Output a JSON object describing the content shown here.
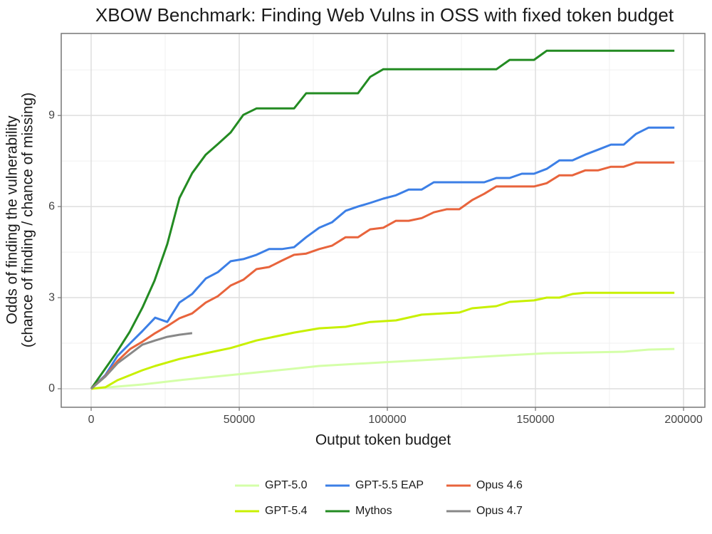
{
  "chart_data": {
    "type": "line",
    "title": "XBOW Benchmark: Finding Web Vulns in OSS with fixed token budget",
    "xlabel": "Output token budget",
    "ylabel": [
      "Odds of finding the vulnerability",
      "(chance of finding / chance of missing)"
    ],
    "xlim": [
      -10100,
      207200
    ],
    "ylim": [
      -0.61,
      11.7
    ],
    "xticks": [
      0,
      50000,
      100000,
      150000,
      200000
    ],
    "yticks": [
      0,
      3,
      6,
      9
    ],
    "grid": true,
    "minor_grid": true,
    "legend": "bottom",
    "series": [
      {
        "name": "GPT-5.0",
        "color": "#d4ffa8",
        "x": [
          0,
          17300,
          29800,
          47100,
          68500,
          77000,
          98600,
          115700,
          136800,
          153800,
          179800,
          188200,
          196900
        ],
        "values": [
          0,
          0.14,
          0.28,
          0.45,
          0.66,
          0.75,
          0.87,
          0.96,
          1.08,
          1.17,
          1.22,
          1.29,
          1.31
        ]
      },
      {
        "name": "GPT-5.4",
        "color": "#c8f000",
        "x": [
          0,
          4800,
          8900,
          17300,
          21600,
          29800,
          38700,
          47100,
          55800,
          68500,
          77000,
          85900,
          94200,
          102900,
          111600,
          124300,
          128600,
          136800,
          141300,
          149500,
          153800,
          158100,
          162500,
          166800,
          196900
        ],
        "values": [
          0,
          0.05,
          0.28,
          0.61,
          0.75,
          0.98,
          1.17,
          1.34,
          1.59,
          1.85,
          1.99,
          2.04,
          2.2,
          2.25,
          2.44,
          2.51,
          2.65,
          2.72,
          2.86,
          2.91,
          3.0,
          3.0,
          3.12,
          3.16,
          3.16
        ]
      },
      {
        "name": "GPT-5.5 EAP",
        "color": "#3c7fe6",
        "x": [
          0,
          4800,
          8900,
          13200,
          17300,
          21600,
          25700,
          29800,
          34100,
          38700,
          42800,
          47100,
          51400,
          55800,
          60100,
          64400,
          68500,
          72600,
          77000,
          81300,
          85900,
          90100,
          94200,
          98600,
          102900,
          107200,
          111600,
          115700,
          132700,
          136800,
          141300,
          145400,
          149500,
          153800,
          158100,
          162500,
          166800,
          171100,
          175500,
          179800,
          183900,
          188200,
          196900
        ],
        "values": [
          0,
          0.45,
          1.08,
          1.5,
          1.9,
          2.34,
          2.2,
          2.84,
          3.12,
          3.63,
          3.84,
          4.2,
          4.27,
          4.41,
          4.6,
          4.6,
          4.66,
          4.99,
          5.3,
          5.48,
          5.86,
          6.0,
          6.12,
          6.26,
          6.37,
          6.56,
          6.56,
          6.8,
          6.8,
          6.94,
          6.94,
          7.08,
          7.08,
          7.24,
          7.52,
          7.52,
          7.71,
          7.87,
          8.04,
          8.04,
          8.39,
          8.6,
          8.6
        ]
      },
      {
        "name": "Mythos",
        "color": "#238b22",
        "x": [
          0,
          8400,
          13000,
          17300,
          21400,
          25700,
          29800,
          34100,
          38700,
          42800,
          47100,
          51400,
          55800,
          68500,
          72600,
          90100,
          94200,
          98600,
          136800,
          141300,
          149500,
          153800,
          196900
        ],
        "values": [
          0,
          1.17,
          1.87,
          2.67,
          3.56,
          4.76,
          6.28,
          7.1,
          7.71,
          8.06,
          8.44,
          9.02,
          9.23,
          9.23,
          9.73,
          9.73,
          10.27,
          10.52,
          10.52,
          10.83,
          10.83,
          11.13,
          11.13
        ]
      },
      {
        "name": "Opus 4.6",
        "color": "#e8643c",
        "x": [
          0,
          4800,
          8900,
          13200,
          17300,
          21600,
          25700,
          29800,
          34100,
          38700,
          42800,
          47100,
          51400,
          55800,
          60100,
          64400,
          68500,
          72600,
          77000,
          81300,
          85900,
          90100,
          94200,
          98600,
          102900,
          107200,
          111600,
          115700,
          120000,
          124300,
          128600,
          132700,
          136800,
          149500,
          153800,
          158100,
          162500,
          166800,
          171100,
          175500,
          179800,
          183900,
          196900
        ],
        "values": [
          0,
          0.42,
          0.91,
          1.31,
          1.55,
          1.83,
          2.06,
          2.32,
          2.48,
          2.84,
          3.05,
          3.4,
          3.59,
          3.94,
          4.01,
          4.22,
          4.41,
          4.45,
          4.6,
          4.71,
          4.99,
          4.99,
          5.25,
          5.3,
          5.53,
          5.53,
          5.62,
          5.81,
          5.91,
          5.91,
          6.21,
          6.42,
          6.66,
          6.66,
          6.77,
          7.03,
          7.03,
          7.19,
          7.19,
          7.31,
          7.31,
          7.45,
          7.45
        ]
      },
      {
        "name": "Opus 4.7",
        "color": "#888888",
        "x": [
          0,
          4800,
          8900,
          13200,
          17300,
          21600,
          25700,
          29800,
          34100
        ],
        "values": [
          0,
          0.4,
          0.84,
          1.15,
          1.45,
          1.59,
          1.71,
          1.78,
          1.83
        ]
      }
    ]
  }
}
